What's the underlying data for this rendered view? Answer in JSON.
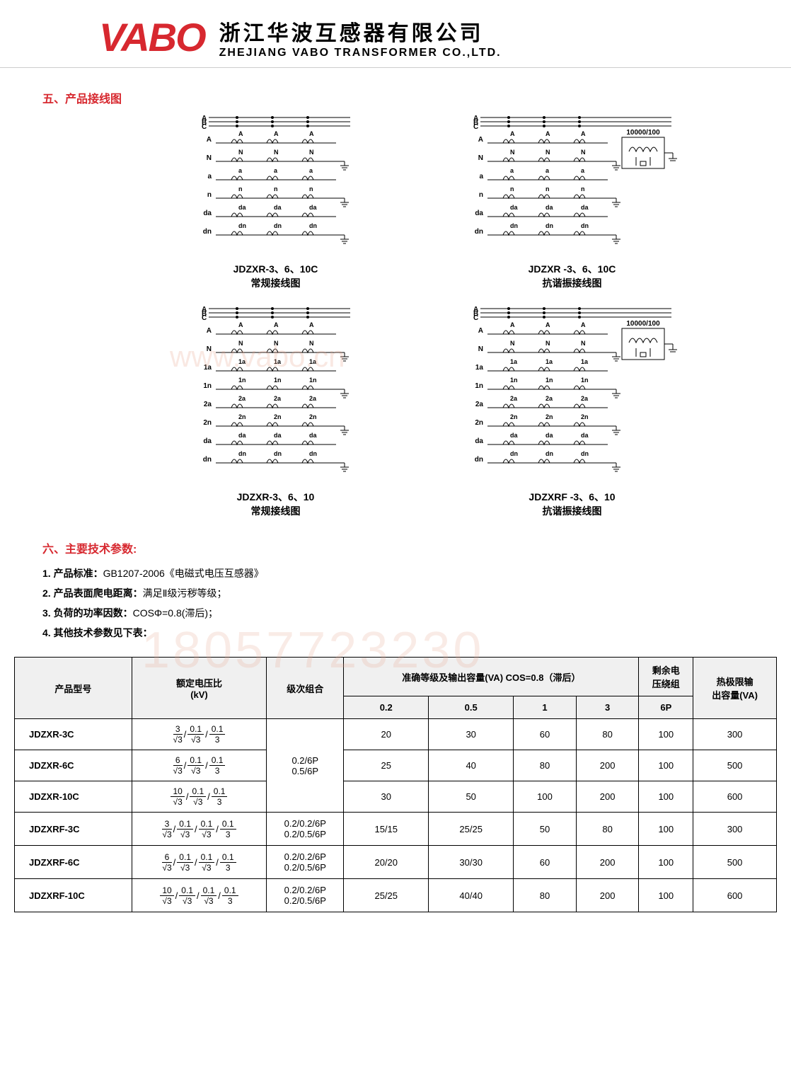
{
  "colors": {
    "brand_red": "#d7282f",
    "text": "#000000",
    "wm": "#e8a890"
  },
  "header": {
    "logo_text": "VABO",
    "company_cn": "浙江华波互感器有限公司",
    "company_en": "ZHEJIANG VABO TRANSFORMER CO.,LTD."
  },
  "watermarks": {
    "url": "www.vabo.cn",
    "phone": "18057723230"
  },
  "section5": {
    "title": "五、产品接线图",
    "diagrams": [
      {
        "id": "d1",
        "caption_l1": "JDZXR-3、6、10C",
        "caption_l2": "常规接线图",
        "rows": [
          "A",
          "N",
          "a",
          "n",
          "da",
          "dn"
        ],
        "extra_box": false
      },
      {
        "id": "d2",
        "caption_l1": "JDZXR -3、6、10C",
        "caption_l2": "抗谐振接线图",
        "rows": [
          "A",
          "N",
          "a",
          "n",
          "da",
          "dn"
        ],
        "extra_box": true,
        "box_label": "10000/100"
      },
      {
        "id": "d3",
        "caption_l1": "JDZXR-3、6、10",
        "caption_l2": "常规接线图",
        "rows": [
          "A",
          "N",
          "1a",
          "1n",
          "2a",
          "2n",
          "da",
          "dn"
        ],
        "extra_box": false
      },
      {
        "id": "d4",
        "caption_l1": "JDZXRF -3、6、10",
        "caption_l2": "抗谐振接线图",
        "rows": [
          "A",
          "N",
          "1a",
          "1n",
          "2a",
          "2n",
          "da",
          "dn"
        ],
        "extra_box": true,
        "box_label": "10000/100"
      }
    ]
  },
  "section6": {
    "title": "六、主要技术参数:",
    "items": [
      "1. 产品标准：GB1207-2006《电磁式电压互感器》",
      "2. 产品表面爬电距离：满足Ⅱ级污秽等级；",
      "3. 负荷的功率因数：COSΦ=0.8(滞后)；",
      "4. 其他技术参数见下表："
    ]
  },
  "table": {
    "headers": {
      "model": "产品型号",
      "ratio": "额定电压比\n(kV)",
      "class_combo": "级次组合",
      "accuracy_group": "准确等级及输出容量(VA) COS=0.8（滞后）",
      "acc_cols": [
        "0.2",
        "0.5",
        "1",
        "3"
      ],
      "residual": "剩余电\n压绕组",
      "residual_sub": "6P",
      "thermal": "热极限输\n出容量(VA)"
    },
    "rows": [
      {
        "model": "JDZXR-3C",
        "ratio_parts": [
          [
            "3",
            "√3"
          ],
          [
            "0.1",
            "√3"
          ],
          [
            "0.1",
            "3"
          ]
        ],
        "combo": "0.2/6P\n0.5/6P",
        "combo_rowspan": 3,
        "vals": [
          "20",
          "30",
          "60",
          "80",
          "100",
          "300"
        ]
      },
      {
        "model": "JDZXR-6C",
        "ratio_parts": [
          [
            "6",
            "√3"
          ],
          [
            "0.1",
            "√3"
          ],
          [
            "0.1",
            "3"
          ]
        ],
        "vals": [
          "25",
          "40",
          "80",
          "200",
          "100",
          "500"
        ]
      },
      {
        "model": "JDZXR-10C",
        "ratio_parts": [
          [
            "10",
            "√3"
          ],
          [
            "0.1",
            "√3"
          ],
          [
            "0.1",
            "3"
          ]
        ],
        "vals": [
          "30",
          "50",
          "100",
          "200",
          "100",
          "600"
        ]
      },
      {
        "model": "JDZXRF-3C",
        "ratio_parts": [
          [
            "3",
            "√3"
          ],
          [
            "0.1",
            "√3"
          ],
          [
            "0.1",
            "√3"
          ],
          [
            "0.1",
            "3"
          ]
        ],
        "combo": "0.2/0.2/6P\n0.2/0.5/6P",
        "vals": [
          "15/15",
          "25/25",
          "50",
          "80",
          "100",
          "300"
        ]
      },
      {
        "model": "JDZXRF-6C",
        "ratio_parts": [
          [
            "6",
            "√3"
          ],
          [
            "0.1",
            "√3"
          ],
          [
            "0.1",
            "√3"
          ],
          [
            "0.1",
            "3"
          ]
        ],
        "combo": "0.2/0.2/6P\n0.2/0.5/6P",
        "vals": [
          "20/20",
          "30/30",
          "60",
          "200",
          "100",
          "500"
        ]
      },
      {
        "model": "JDZXRF-10C",
        "ratio_parts": [
          [
            "10",
            "√3"
          ],
          [
            "0.1",
            "√3"
          ],
          [
            "0.1",
            "√3"
          ],
          [
            "0.1",
            "3"
          ]
        ],
        "combo": "0.2/0.2/6P\n0.2/0.5/6P",
        "vals": [
          "25/25",
          "40/40",
          "80",
          "200",
          "100",
          "600"
        ]
      }
    ]
  }
}
